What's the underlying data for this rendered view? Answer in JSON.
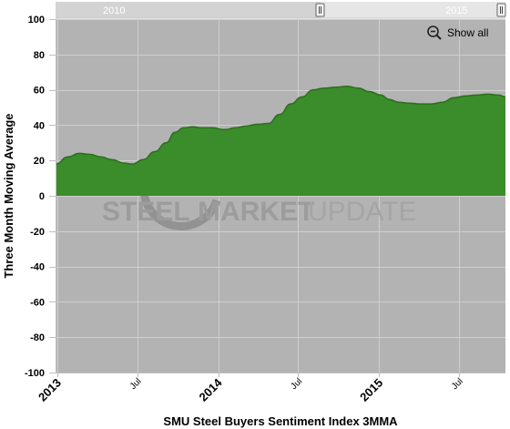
{
  "navigator": {
    "labels": [
      "2010",
      "2015"
    ]
  },
  "toolbar": {
    "show_all_label": "Show all",
    "icon": "zoom-out-magnifier-icon"
  },
  "watermark": {
    "word1": "STEEL",
    "word2": "MARKET",
    "word3": "UPDATE"
  },
  "colors": {
    "plot_bg": "#b3b3b3",
    "area_fill": "#3b8c2a",
    "area_stroke": "#2b6e1e",
    "grid": "#cfcfcf",
    "navigator_bg": "#e6e6e6"
  },
  "chart_data": {
    "type": "area",
    "title": "",
    "xlabel": "SMU Steel Buyers Sentiment Index 3MMA",
    "ylabel": "Three Month Moving Average",
    "ylim": [
      -100,
      100
    ],
    "yticks": [
      100,
      80,
      60,
      40,
      20,
      0,
      -20,
      -40,
      -60,
      -80,
      -100
    ],
    "xlim": [
      "2012-12-28",
      "2015-10-15"
    ],
    "xticks": [
      {
        "date": "2013-01-01",
        "label": "2013",
        "major": true
      },
      {
        "date": "2013-07-01",
        "label": "Jul",
        "major": false
      },
      {
        "date": "2014-01-01",
        "label": "2014",
        "major": true
      },
      {
        "date": "2014-07-01",
        "label": "Jul",
        "major": false
      },
      {
        "date": "2015-01-01",
        "label": "2015",
        "major": true
      },
      {
        "date": "2015-07-01",
        "label": "Jul",
        "major": false
      }
    ],
    "grid": true,
    "series": [
      {
        "points": [
          [
            "2012-12-28",
            18
          ],
          [
            "2013-01-25",
            22
          ],
          [
            "2013-02-20",
            24
          ],
          [
            "2013-03-15",
            23.5
          ],
          [
            "2013-04-10",
            22
          ],
          [
            "2013-05-05",
            20.5
          ],
          [
            "2013-06-01",
            18.5
          ],
          [
            "2013-06-20",
            18
          ],
          [
            "2013-07-15",
            20.5
          ],
          [
            "2013-08-10",
            25
          ],
          [
            "2013-09-05",
            30
          ],
          [
            "2013-09-25",
            36
          ],
          [
            "2013-10-15",
            38.5
          ],
          [
            "2013-11-05",
            39
          ],
          [
            "2013-11-25",
            38.5
          ],
          [
            "2013-12-20",
            38.5
          ],
          [
            "2014-01-15",
            37.5
          ],
          [
            "2014-02-10",
            38.5
          ],
          [
            "2014-03-05",
            39.5
          ],
          [
            "2014-04-01",
            40.5
          ],
          [
            "2014-04-25",
            41
          ],
          [
            "2014-05-20",
            46
          ],
          [
            "2014-06-15",
            52
          ],
          [
            "2014-07-10",
            56
          ],
          [
            "2014-08-05",
            60
          ],
          [
            "2014-08-30",
            61
          ],
          [
            "2014-09-25",
            61.5
          ],
          [
            "2014-10-20",
            62
          ],
          [
            "2014-11-15",
            61
          ],
          [
            "2014-12-10",
            59
          ],
          [
            "2015-01-05",
            57
          ],
          [
            "2015-01-25",
            54.5
          ],
          [
            "2015-02-15",
            53
          ],
          [
            "2015-03-10",
            52.5
          ],
          [
            "2015-04-05",
            52
          ],
          [
            "2015-05-01",
            52
          ],
          [
            "2015-05-25",
            53
          ],
          [
            "2015-06-20",
            55.5
          ],
          [
            "2015-07-15",
            56.5
          ],
          [
            "2015-08-10",
            57
          ],
          [
            "2015-09-05",
            57.5
          ],
          [
            "2015-09-30",
            57
          ],
          [
            "2015-10-15",
            56
          ]
        ]
      }
    ]
  }
}
